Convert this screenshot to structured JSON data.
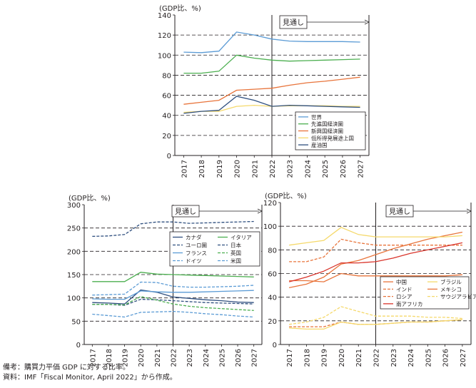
{
  "chart_data": [
    {
      "type": "line",
      "title": "",
      "ylabel": "(GDP比、%)",
      "xlabel": "",
      "x": [
        2017,
        2018,
        2019,
        2020,
        2021,
        2022,
        2023,
        2024,
        2025,
        2026,
        2027
      ],
      "ylim": [
        0,
        140
      ],
      "yticks": [
        0,
        20,
        40,
        60,
        80,
        100,
        120,
        140
      ],
      "projection_label": "見通し",
      "projection_start": 2022,
      "legend_position": "bottom-right",
      "series": [
        {
          "name": "世界",
          "color": "#5b9bd5",
          "dash": "",
          "values": [
            103,
            102.5,
            104,
            123,
            120,
            116,
            114,
            113.5,
            113.5,
            113.5,
            113
          ]
        },
        {
          "name": "先進国経済圏",
          "color": "#4caf50",
          "dash": "",
          "values": [
            82,
            82,
            84,
            100,
            97,
            95,
            94,
            94.5,
            95,
            95.5,
            96
          ]
        },
        {
          "name": "新興国経済圏",
          "color": "#e8743b",
          "dash": "",
          "values": [
            51,
            53,
            55,
            65,
            66,
            67,
            70,
            72.5,
            74,
            76,
            78
          ]
        },
        {
          "name": "低所得発展途上国",
          "color": "#f5d96b",
          "dash": "",
          "values": [
            43,
            44,
            44,
            49,
            50,
            49,
            49.5,
            49.5,
            49.5,
            49,
            49
          ]
        },
        {
          "name": "産油国",
          "color": "#2f4f7f",
          "dash": "",
          "values": [
            42,
            44,
            45,
            59,
            55,
            49,
            50,
            49.5,
            49,
            48.5,
            48
          ]
        }
      ]
    },
    {
      "type": "line",
      "title": "",
      "ylabel": "(GDP比、%)",
      "xlabel": "",
      "x": [
        2017,
        2018,
        2019,
        2020,
        2021,
        2022,
        2023,
        2024,
        2025,
        2026,
        2027
      ],
      "ylim": [
        0,
        300
      ],
      "yticks": [
        0,
        50,
        100,
        150,
        200,
        250,
        300
      ],
      "projection_label": "見通し",
      "projection_start": 2022,
      "legend_position": "right",
      "series": [
        {
          "name": "カナダ",
          "color": "#2f4f7f",
          "dash": "",
          "values": [
            90,
            89,
            87,
            117,
            112,
            102,
            99,
            96,
            94,
            91,
            90
          ]
        },
        {
          "name": "イタリア",
          "color": "#4caf50",
          "dash": "",
          "values": [
            135,
            135,
            135,
            155,
            151,
            150,
            149,
            148,
            147,
            146,
            145
          ]
        },
        {
          "name": "ユーロ圏",
          "color": "#2f4f7f",
          "dash": "4 2",
          "values": [
            86,
            86,
            84,
            97,
            96,
            94,
            92,
            90,
            89,
            88,
            87
          ]
        },
        {
          "name": "日本",
          "color": "#2f4f7f",
          "dash": "4 2",
          "values": [
            232,
            233,
            236,
            259,
            263,
            263,
            260,
            261,
            262,
            263,
            264
          ]
        },
        {
          "name": "フランス",
          "color": "#5b9bd5",
          "dash": "",
          "values": [
            98,
            97,
            97,
            115,
            113,
            112,
            112,
            113,
            114,
            115,
            116
          ]
        },
        {
          "name": "英国",
          "color": "#4caf50",
          "dash": "4 2",
          "values": [
            86,
            86,
            85,
            103,
            95,
            87,
            82,
            79,
            77,
            75,
            73
          ]
        },
        {
          "name": "ドイツ",
          "color": "#5b9bd5",
          "dash": "4 2",
          "values": [
            65,
            62,
            59,
            69,
            70,
            71,
            69,
            66,
            64,
            61,
            59
          ]
        },
        {
          "name": "米国",
          "color": "#5b9bd5",
          "dash": "4 2",
          "values": [
            106,
            107,
            108,
            134,
            133,
            125,
            123,
            123,
            124,
            125,
            127
          ]
        }
      ]
    },
    {
      "type": "line",
      "title": "",
      "ylabel": "(GDP比、%)",
      "xlabel": "",
      "x": [
        2017,
        2018,
        2019,
        2020,
        2021,
        2022,
        2023,
        2024,
        2025,
        2026,
        2027
      ],
      "ylim": [
        0,
        120
      ],
      "yticks": [
        0,
        20,
        40,
        60,
        80,
        100,
        120
      ],
      "projection_label": "見通し",
      "projection_start": 2022,
      "legend_position": "bottom-right",
      "series": [
        {
          "name": "中国",
          "color": "#e8743b",
          "dash": "",
          "values": [
            48,
            51,
            57,
            68,
            71,
            76,
            81,
            85,
            89,
            92,
            95
          ]
        },
        {
          "name": "ブラジル",
          "color": "#f5d96b",
          "dash": "",
          "values": [
            84,
            86,
            88,
            99,
            93,
            91,
            91,
            91,
            91,
            91,
            92
          ]
        },
        {
          "name": "インド",
          "color": "#e8743b",
          "dash": "4 2",
          "values": [
            70,
            70,
            74,
            89,
            86,
            84,
            84,
            84,
            84,
            84,
            84
          ]
        },
        {
          "name": "メキシコ",
          "color": "#e8743b",
          "dash": "",
          "values": [
            54,
            54,
            53,
            60,
            58,
            58,
            58,
            58,
            58,
            58,
            59
          ]
        },
        {
          "name": "ロシア",
          "color": "#e8743b",
          "dash": "4 2",
          "values": [
            15,
            15,
            15,
            19,
            17,
            17,
            18,
            19,
            19,
            20,
            21
          ]
        },
        {
          "name": "サウジアラビア",
          "color": "#f5d96b",
          "dash": "4 2",
          "values": [
            17,
            19,
            23,
            32,
            28,
            24,
            24,
            24,
            23,
            23,
            22
          ]
        },
        {
          "name": "南アフリカ",
          "color": "#d9342b",
          "dash": "",
          "values": [
            53,
            57,
            62,
            69,
            69,
            70,
            73,
            77,
            80,
            83,
            86
          ]
        },
        {
          "name": "",
          "color": "#f5d96b",
          "dash": "",
          "values": [
            14,
            13,
            13,
            19,
            17,
            17,
            18,
            19,
            19,
            20,
            21
          ]
        }
      ]
    }
  ],
  "notes": {
    "remark": "備考：購買力平価 GDP に対する比率。",
    "source": "資料：IMF「Fiscal Monitor, April 2022」から作成。"
  }
}
